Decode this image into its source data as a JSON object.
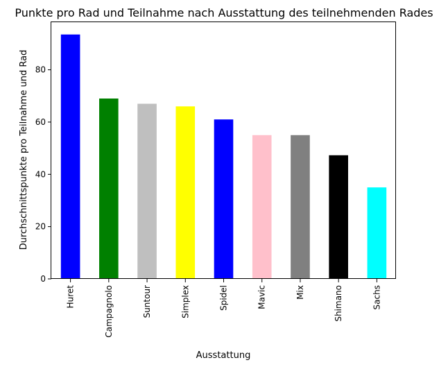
{
  "chart_data": {
    "type": "bar",
    "title": "Punkte pro Rad und Teilnahme nach Ausstattung des teilnehmenden Rades",
    "xlabel": "Ausstattung",
    "ylabel": "Durchschnittspunkte pro Teilnahme und Rad",
    "categories": [
      "Huret",
      "Campagnolo",
      "Suntour",
      "Simplex",
      "Spidel",
      "Mavic",
      "Mix",
      "Shimano",
      "Sachs"
    ],
    "values": [
      93.5,
      69.0,
      67.0,
      66.0,
      61.0,
      55.0,
      55.0,
      47.3,
      35.0
    ],
    "colors": [
      "#0000ff",
      "#008000",
      "#bfbfbf",
      "#ffff00",
      "#0000ff",
      "#ffc0cb",
      "#808080",
      "#000000",
      "#00ffff"
    ],
    "ylim": [
      0,
      98.2
    ],
    "yticks": [
      0,
      20,
      40,
      60,
      80
    ],
    "grid": false,
    "legend": "none"
  }
}
